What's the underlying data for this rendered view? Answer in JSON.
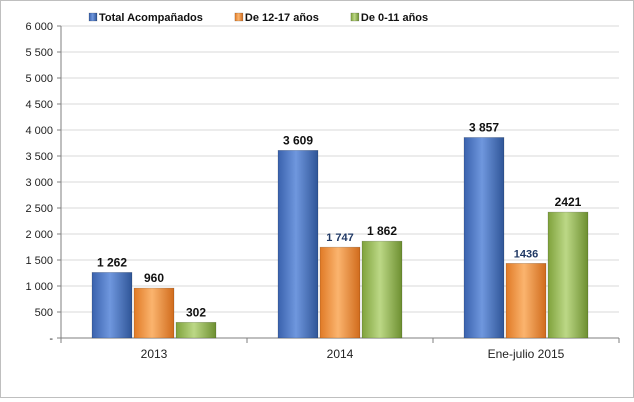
{
  "chart_data": {
    "type": "bar",
    "categories": [
      "2013",
      "2014",
      "Ene-julio 2015"
    ],
    "series": [
      {
        "name": "Total Acompañados",
        "color": "#4472c4",
        "values": [
          1262,
          3609,
          3857
        ],
        "labels": [
          "1 262",
          "3 609",
          "3 857"
        ]
      },
      {
        "name": "De 12-17 años",
        "color": "#f79646",
        "values": [
          960,
          1747,
          1436
        ],
        "labels": [
          "960",
          "1 747",
          "1436"
        ]
      },
      {
        "name": "De 0-11 años",
        "color": "#9bbb59",
        "values": [
          302,
          1862,
          2421
        ],
        "labels": [
          "302",
          "1 862",
          "2421"
        ]
      }
    ],
    "ylim": [
      0,
      6000
    ],
    "yticks": [
      {
        "value": 0,
        "label": "-"
      },
      {
        "value": 500,
        "label": "500"
      },
      {
        "value": 1000,
        "label": "1 000"
      },
      {
        "value": 1500,
        "label": "1 500"
      },
      {
        "value": 2000,
        "label": "2 000"
      },
      {
        "value": 2500,
        "label": "2 500"
      },
      {
        "value": 3000,
        "label": "3 000"
      },
      {
        "value": 3500,
        "label": "3 500"
      },
      {
        "value": 4000,
        "label": "4 000"
      },
      {
        "value": 4500,
        "label": "4 500"
      },
      {
        "value": 5000,
        "label": "5 000"
      },
      {
        "value": 5500,
        "label": "5 500"
      },
      {
        "value": 6000,
        "label": "6 000"
      }
    ],
    "grid": true,
    "legend": "top-left"
  }
}
